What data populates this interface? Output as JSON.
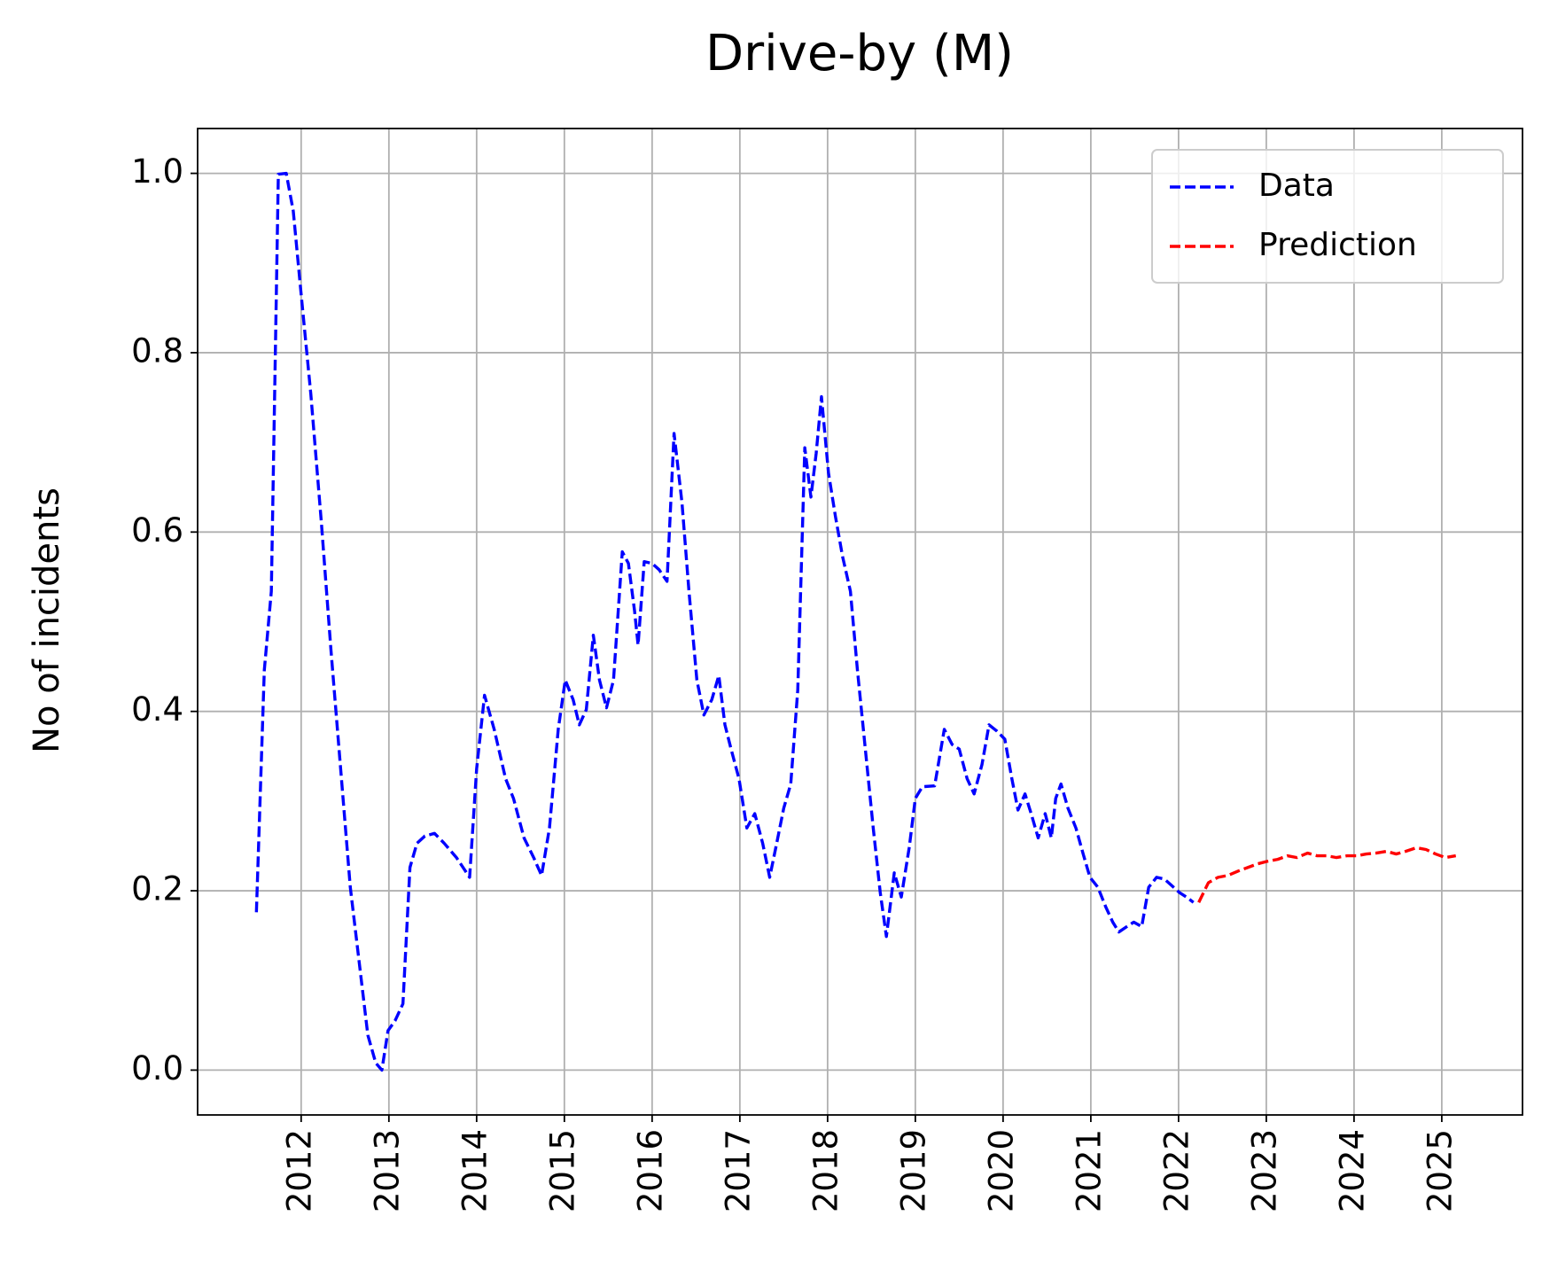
{
  "chart_data": {
    "type": "line",
    "title": "Drive-by (M)",
    "y_label": "No of incidents",
    "xlim": [
      2010.82,
      2025.92
    ],
    "ylim": [
      -0.05,
      1.05
    ],
    "xticks": [
      2012,
      2013,
      2014,
      2015,
      2016,
      2017,
      2018,
      2019,
      2020,
      2021,
      2022,
      2023,
      2024,
      2025
    ],
    "yticks": [
      {
        "value": 0,
        "label": "0.0"
      },
      0.2,
      0.4,
      0.6,
      0.8,
      {
        "value": 1,
        "label": "1.0"
      }
    ],
    "grid": true,
    "legend": "upper right",
    "series": [
      {
        "name": "Data",
        "color": "#0000ff",
        "x": [
          2011.49,
          2011.58,
          2011.66,
          2011.74,
          2011.83,
          2011.91,
          2012.0,
          2012.11,
          2012.23,
          2012.34,
          2012.45,
          2012.56,
          2012.68,
          2012.76,
          2012.85,
          2012.92,
          2012.99,
          2013.07,
          2013.16,
          2013.24,
          2013.32,
          2013.41,
          2013.52,
          2013.63,
          2013.77,
          2013.92,
          2014.0,
          2014.09,
          2014.2,
          2014.33,
          2014.42,
          2014.54,
          2014.65,
          2014.74,
          2014.83,
          2014.93,
          2015.01,
          2015.1,
          2015.17,
          2015.25,
          2015.33,
          2015.4,
          2015.48,
          2015.56,
          2015.66,
          2015.73,
          2015.8,
          2015.84,
          2015.91,
          2016.0,
          2016.08,
          2016.17,
          2016.25,
          2016.34,
          2016.42,
          2016.51,
          2016.59,
          2016.68,
          2016.76,
          2016.83,
          2016.9,
          2016.99,
          2017.08,
          2017.17,
          2017.26,
          2017.34,
          2017.42,
          2017.5,
          2017.58,
          2017.66,
          2017.74,
          2017.81,
          2017.87,
          2017.93,
          2018.01,
          2018.09,
          2018.17,
          2018.26,
          2018.34,
          2018.43,
          2018.52,
          2018.6,
          2018.67,
          2018.76,
          2018.84,
          2018.93,
          2019.0,
          2019.08,
          2019.22,
          2019.33,
          2019.42,
          2019.5,
          2019.59,
          2019.67,
          2019.76,
          2019.84,
          2019.93,
          2020.02,
          2020.1,
          2020.17,
          2020.25,
          2020.32,
          2020.4,
          2020.48,
          2020.55,
          2020.6,
          2020.66,
          2020.74,
          2020.83,
          2020.91,
          2020.99,
          2021.08,
          2021.17,
          2021.25,
          2021.32,
          2021.41,
          2021.49,
          2021.58,
          2021.66,
          2021.75,
          2021.84,
          2021.92,
          2022.01,
          2022.09,
          2022.17
        ],
        "values": [
          0.176,
          0.446,
          0.534,
          0.999,
          1.0,
          0.958,
          0.865,
          0.754,
          0.611,
          0.468,
          0.336,
          0.204,
          0.105,
          0.039,
          0.008,
          0.0,
          0.044,
          0.055,
          0.074,
          0.226,
          0.253,
          0.261,
          0.264,
          0.253,
          0.237,
          0.215,
          0.336,
          0.418,
          0.38,
          0.325,
          0.303,
          0.259,
          0.237,
          0.217,
          0.27,
          0.38,
          0.435,
          0.413,
          0.385,
          0.402,
          0.485,
          0.435,
          0.404,
          0.435,
          0.578,
          0.565,
          0.512,
          0.474,
          0.567,
          0.565,
          0.558,
          0.545,
          0.71,
          0.633,
          0.534,
          0.435,
          0.396,
          0.413,
          0.44,
          0.385,
          0.358,
          0.325,
          0.27,
          0.286,
          0.253,
          0.215,
          0.253,
          0.292,
          0.319,
          0.424,
          0.694,
          0.639,
          0.688,
          0.751,
          0.666,
          0.617,
          0.573,
          0.534,
          0.446,
          0.358,
          0.27,
          0.198,
          0.149,
          0.22,
          0.193,
          0.248,
          0.303,
          0.316,
          0.317,
          0.38,
          0.363,
          0.358,
          0.325,
          0.308,
          0.341,
          0.385,
          0.378,
          0.369,
          0.325,
          0.29,
          0.308,
          0.286,
          0.259,
          0.286,
          0.259,
          0.303,
          0.319,
          0.292,
          0.27,
          0.242,
          0.215,
          0.204,
          0.182,
          0.165,
          0.154,
          0.16,
          0.165,
          0.16,
          0.204,
          0.215,
          0.213,
          0.206,
          0.198,
          0.193,
          0.187
        ]
      },
      {
        "name": "Prediction",
        "color": "#ff0000",
        "x": [
          2022.23,
          2022.34,
          2022.45,
          2022.56,
          2022.68,
          2022.79,
          2022.9,
          2023.02,
          2023.13,
          2023.24,
          2023.35,
          2023.47,
          2023.58,
          2023.69,
          2023.8,
          2023.92,
          2024.03,
          2024.14,
          2024.25,
          2024.37,
          2024.48,
          2024.59,
          2024.71,
          2024.82,
          2024.93,
          2025.04,
          2025.16
        ],
        "values": [
          0.187,
          0.209,
          0.215,
          0.217,
          0.222,
          0.226,
          0.23,
          0.233,
          0.235,
          0.239,
          0.237,
          0.242,
          0.239,
          0.239,
          0.237,
          0.239,
          0.239,
          0.241,
          0.242,
          0.244,
          0.241,
          0.244,
          0.248,
          0.246,
          0.241,
          0.237,
          0.239
        ]
      }
    ]
  }
}
